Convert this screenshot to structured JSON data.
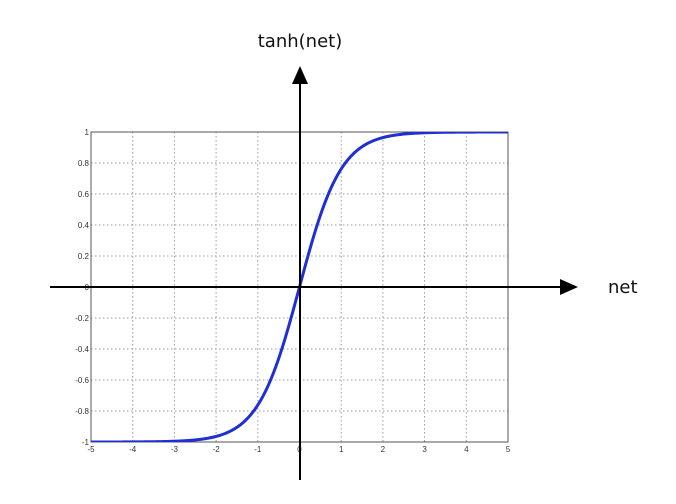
{
  "chart_data": {
    "type": "line",
    "title": "",
    "xlabel": "net",
    "ylabel": "tanh(net)",
    "xlim": [
      -5,
      5
    ],
    "ylim": [
      -1,
      1
    ],
    "x_ticks": [
      "-5",
      "-4",
      "-3",
      "-2",
      "-1",
      "0",
      "1",
      "2",
      "3",
      "4",
      "5"
    ],
    "y_ticks": [
      "1",
      "0.8",
      "0.6",
      "0.4",
      "0.2",
      "0",
      "-0.2",
      "-0.4",
      "-0.6",
      "-0.8",
      "-1"
    ],
    "grid": true,
    "grid_style": "dotted",
    "series": [
      {
        "function": "tanh",
        "color": "#1f2fd6",
        "x": [
          -5,
          -4,
          -3,
          -2.5,
          -2,
          -1.5,
          -1,
          -0.5,
          0,
          0.5,
          1,
          1.5,
          2,
          2.5,
          3,
          4,
          5
        ],
        "y": [
          -0.9999,
          -0.9993,
          -0.9951,
          -0.9866,
          -0.964,
          -0.9051,
          -0.7616,
          -0.4621,
          0,
          0.4621,
          0.7616,
          0.9051,
          0.964,
          0.9866,
          0.9951,
          0.9993,
          0.9999
        ]
      }
    ],
    "colors": {
      "frame": "#555555",
      "grid": "#9a9a9a",
      "axis": "#000000"
    }
  }
}
